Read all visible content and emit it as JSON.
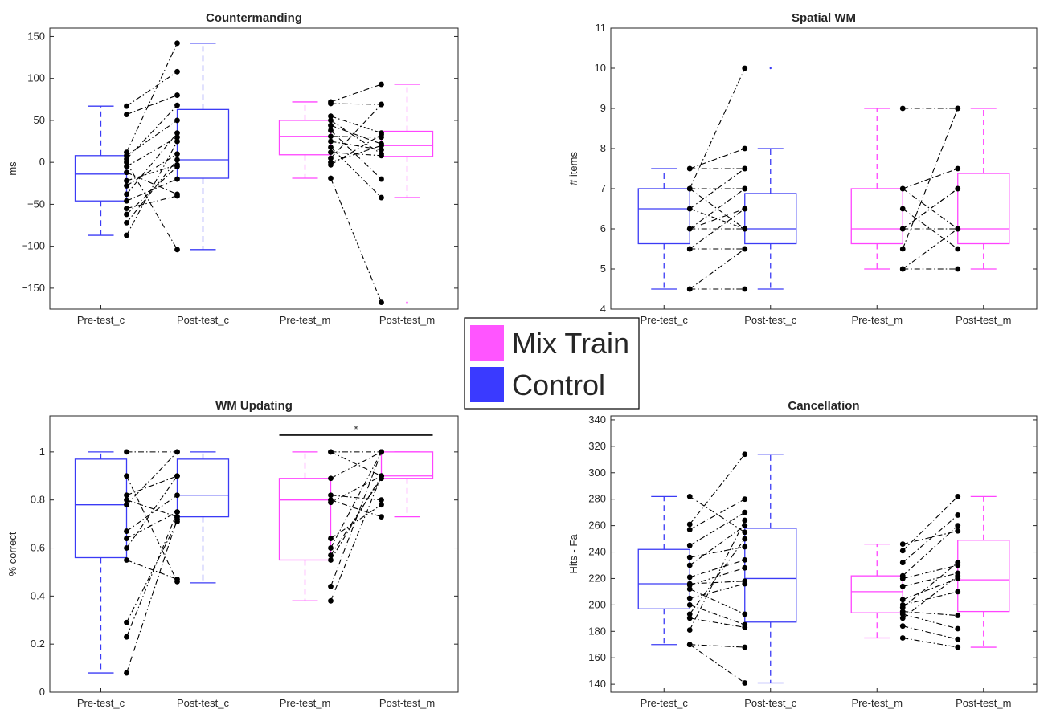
{
  "colors": {
    "control": "#3b3bf5",
    "mix": "#ff44ff",
    "pairs": "#000000",
    "axis": "#262626"
  },
  "legend": {
    "placement": "center",
    "entries": [
      {
        "label": "Mix Train",
        "color": "#ff55ff"
      },
      {
        "label": "Control",
        "color": "#3a3aff"
      }
    ]
  },
  "chart_data": [
    {
      "type": "box",
      "title": "Countermanding",
      "ylabel": "ms",
      "categories": [
        "Pre-test_c",
        "Post-test_c",
        "Pre-test_m",
        "Post-test_m"
      ],
      "ylim": [
        -175,
        160
      ],
      "yticks": [
        150,
        100,
        50,
        0,
        -50,
        -100,
        -150
      ],
      "boxes": [
        {
          "group": "control",
          "whisker_low": -87,
          "q1": -46,
          "median": -14,
          "q3": 8,
          "whisker_high": 67,
          "outliers": []
        },
        {
          "group": "control",
          "whisker_low": -104,
          "q1": -19,
          "median": 3,
          "q3": 63,
          "whisker_high": 142,
          "outliers": []
        },
        {
          "group": "mix",
          "whisker_low": -19,
          "q1": 9,
          "median": 31,
          "q3": 50,
          "whisker_high": 72,
          "outliers": []
        },
        {
          "group": "mix",
          "whisker_low": -42,
          "q1": 7,
          "median": 20,
          "q3": 37,
          "whisker_high": 93,
          "outliers": [
            -167
          ]
        }
      ],
      "pairs": [
        {
          "from": 0,
          "to": 1,
          "values": [
            [
              67,
              108
            ],
            [
              57,
              80
            ],
            [
              12,
              142
            ],
            [
              8,
              50
            ],
            [
              4,
              68
            ],
            [
              -5,
              30
            ],
            [
              -12,
              -38
            ],
            [
              -22,
              -3
            ],
            [
              -28,
              10
            ],
            [
              -38,
              35
            ],
            [
              -46,
              -20
            ],
            [
              -55,
              -40
            ],
            [
              -62,
              -5
            ],
            [
              -72,
              3
            ],
            [
              -87,
              25
            ],
            [
              0,
              -104
            ]
          ]
        },
        {
          "from": 2,
          "to": 3,
          "values": [
            [
              72,
              93
            ],
            [
              70,
              69
            ],
            [
              55,
              35
            ],
            [
              50,
              10
            ],
            [
              44,
              22
            ],
            [
              38,
              -20
            ],
            [
              31,
              30
            ],
            [
              25,
              15
            ],
            [
              18,
              -42
            ],
            [
              12,
              8
            ],
            [
              5,
              69
            ],
            [
              0,
              20
            ],
            [
              -3,
              33
            ],
            [
              -19,
              -167
            ]
          ]
        }
      ]
    },
    {
      "type": "box",
      "title": "Spatial WM",
      "ylabel": "# items",
      "categories": [
        "Pre-test_c",
        "Post-test_c",
        "Pre-test_m",
        "Post-test_m"
      ],
      "ylim": [
        4,
        11
      ],
      "yticks": [
        11,
        10,
        9,
        8,
        7,
        6,
        5,
        4
      ],
      "boxes": [
        {
          "group": "control",
          "whisker_low": 4.5,
          "q1": 5.63,
          "median": 6.5,
          "q3": 7,
          "whisker_high": 7.5,
          "outliers": []
        },
        {
          "group": "control",
          "whisker_low": 4.5,
          "q1": 5.63,
          "median": 6,
          "q3": 6.88,
          "whisker_high": 8,
          "outliers": [
            10
          ]
        },
        {
          "group": "mix",
          "whisker_low": 5,
          "q1": 5.63,
          "median": 6,
          "q3": 7,
          "whisker_high": 9,
          "outliers": []
        },
        {
          "group": "mix",
          "whisker_low": 5,
          "q1": 5.63,
          "median": 6,
          "q3": 7.38,
          "whisker_high": 9,
          "outliers": []
        }
      ],
      "pairs": [
        {
          "from": 0,
          "to": 1,
          "values": [
            [
              7.5,
              7.5
            ],
            [
              7.5,
              8
            ],
            [
              7,
              6
            ],
            [
              7,
              10
            ],
            [
              6.5,
              7.5
            ],
            [
              6.5,
              6
            ],
            [
              6,
              7
            ],
            [
              6,
              6.5
            ],
            [
              5.5,
              5.5
            ],
            [
              5.5,
              6.5
            ],
            [
              4.5,
              4.5
            ],
            [
              4.5,
              5.5
            ],
            [
              7,
              7
            ],
            [
              6,
              6
            ]
          ]
        },
        {
          "from": 2,
          "to": 3,
          "values": [
            [
              9,
              9
            ],
            [
              7,
              7.5
            ],
            [
              7,
              6
            ],
            [
              6.5,
              5.5
            ],
            [
              6,
              6
            ],
            [
              6,
              7
            ],
            [
              5.5,
              9
            ],
            [
              5,
              6
            ],
            [
              5,
              5
            ],
            [
              6,
              7
            ]
          ]
        }
      ]
    },
    {
      "type": "box",
      "title": "WM Updating",
      "ylabel": "% correct",
      "categories": [
        "Pre-test_c",
        "Post-test_c",
        "Pre-test_m",
        "Post-test_m"
      ],
      "ylim": [
        0,
        1.15
      ],
      "yticks": [
        1,
        0.8,
        0.6,
        0.4,
        0.2,
        0
      ],
      "boxes": [
        {
          "group": "control",
          "whisker_low": 0.08,
          "q1": 0.56,
          "median": 0.78,
          "q3": 0.97,
          "whisker_high": 1.0,
          "outliers": []
        },
        {
          "group": "control",
          "whisker_low": 0.455,
          "q1": 0.73,
          "median": 0.82,
          "q3": 0.97,
          "whisker_high": 1.0,
          "outliers": []
        },
        {
          "group": "mix",
          "whisker_low": 0.38,
          "q1": 0.55,
          "median": 0.8,
          "q3": 0.89,
          "whisker_high": 1.0,
          "outliers": []
        },
        {
          "group": "mix",
          "whisker_low": 0.73,
          "q1": 0.89,
          "median": 0.9,
          "q3": 1.0,
          "whisker_high": 1.0,
          "outliers": []
        }
      ],
      "significance": {
        "from": 2,
        "to": 3,
        "y": 1.07,
        "label": "*"
      },
      "pairs": [
        {
          "from": 0,
          "to": 1,
          "values": [
            [
              1.0,
              1.0
            ],
            [
              0.9,
              0.46
            ],
            [
              0.82,
              0.9
            ],
            [
              0.8,
              0.73
            ],
            [
              0.78,
              1.0
            ],
            [
              0.67,
              0.82
            ],
            [
              0.64,
              0.75
            ],
            [
              0.6,
              0.9
            ],
            [
              0.55,
              0.47
            ],
            [
              0.29,
              0.71
            ],
            [
              0.23,
              0.75
            ],
            [
              0.08,
              0.72
            ]
          ]
        },
        {
          "from": 2,
          "to": 3,
          "values": [
            [
              1.0,
              1.0
            ],
            [
              1.0,
              0.9
            ],
            [
              0.89,
              1.0
            ],
            [
              0.82,
              0.8
            ],
            [
              0.8,
              0.73
            ],
            [
              0.79,
              0.9
            ],
            [
              0.64,
              0.78
            ],
            [
              0.6,
              1.0
            ],
            [
              0.57,
              0.89
            ],
            [
              0.55,
              0.9
            ],
            [
              0.44,
              1.0
            ],
            [
              0.38,
              0.9
            ]
          ]
        }
      ]
    },
    {
      "type": "box",
      "title": "Cancellation",
      "ylabel": "Hits - Fa",
      "categories": [
        "Pre-test_c",
        "Post-test_c",
        "Pre-test_m",
        "Post-test_m"
      ],
      "ylim": [
        134,
        343
      ],
      "yticks": [
        340,
        320,
        300,
        280,
        260,
        240,
        220,
        200,
        180,
        160,
        140
      ],
      "boxes": [
        {
          "group": "control",
          "whisker_low": 170,
          "q1": 197,
          "median": 216,
          "q3": 242,
          "whisker_high": 282,
          "outliers": []
        },
        {
          "group": "control",
          "whisker_low": 141,
          "q1": 187,
          "median": 220,
          "q3": 258,
          "whisker_high": 314,
          "outliers": []
        },
        {
          "group": "mix",
          "whisker_low": 175,
          "q1": 194,
          "median": 210,
          "q3": 222,
          "whisker_high": 246,
          "outliers": []
        },
        {
          "group": "mix",
          "whisker_low": 168,
          "q1": 195,
          "median": 219,
          "q3": 249,
          "whisker_high": 282,
          "outliers": []
        }
      ],
      "pairs": [
        {
          "from": 0,
          "to": 1,
          "values": [
            [
              282,
              255
            ],
            [
              261,
              314
            ],
            [
              257,
              280
            ],
            [
              245,
              270
            ],
            [
              236,
              244
            ],
            [
              230,
              260
            ],
            [
              221,
              234
            ],
            [
              216,
              218
            ],
            [
              215,
              228
            ],
            [
              212,
              193
            ],
            [
              205,
              216
            ],
            [
              200,
              185
            ],
            [
              193,
              250
            ],
            [
              190,
              183
            ],
            [
              181,
              264
            ],
            [
              170,
              168
            ],
            [
              170,
              141
            ]
          ]
        },
        {
          "from": 2,
          "to": 3,
          "values": [
            [
              246,
              256
            ],
            [
              241,
              282
            ],
            [
              232,
              268
            ],
            [
              222,
              260
            ],
            [
              220,
              230
            ],
            [
              214,
              224
            ],
            [
              204,
              220
            ],
            [
              200,
              210
            ],
            [
              198,
              232
            ],
            [
              195,
              192
            ],
            [
              190,
              222
            ],
            [
              184,
              174
            ],
            [
              175,
              168
            ],
            [
              193,
              182
            ]
          ]
        }
      ]
    }
  ]
}
